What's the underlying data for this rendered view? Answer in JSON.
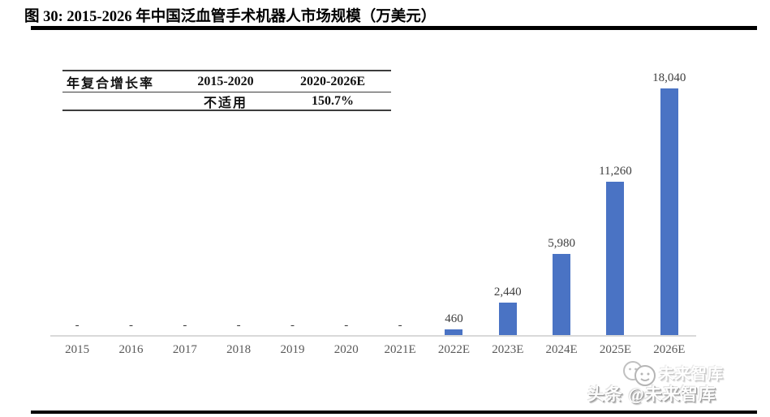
{
  "figure": {
    "title": "图 30: 2015-2026 年中国泛血管手术机器人市场规模（万美元）"
  },
  "cagr_table": {
    "header": [
      "年复合增长率",
      "2015-2020",
      "2020-2026E"
    ],
    "row": [
      "",
      "不适用",
      "150.7%"
    ]
  },
  "chart_data": {
    "type": "bar",
    "title": "2015-2026 年中国泛血管手术机器人市场规模（万美元）",
    "unit": "万美元",
    "categories": [
      "2015",
      "2016",
      "2017",
      "2018",
      "2019",
      "2020",
      "2021E",
      "2022E",
      "2023E",
      "2024E",
      "2025E",
      "2026E"
    ],
    "values": [
      null,
      null,
      null,
      null,
      null,
      null,
      null,
      460,
      2440,
      5980,
      11260,
      18040
    ],
    "labels": [
      "-",
      "-",
      "-",
      "-",
      "-",
      "-",
      "-",
      "460",
      "2,440",
      "5,980",
      "11,260",
      "18,040"
    ],
    "ylim": [
      0,
      20000
    ],
    "grid": false,
    "legend_position": "none",
    "bar_color": "#4a73c4",
    "axis_line_color": "#d9d9d9",
    "label_color": "#3d3d3d",
    "tick_color": "#595959"
  },
  "watermark": {
    "ghost": "未来智库",
    "main": "头条 @未来智库"
  }
}
